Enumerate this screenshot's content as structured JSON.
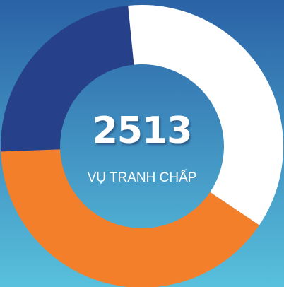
{
  "chart_data": {
    "type": "donut",
    "center_value": 2513,
    "center_caption": "VỤ TRANH CHẤP",
    "values": [
      36,
      40,
      24
    ],
    "colors": [
      "#ffffff",
      "#f47f2a",
      "#26418a"
    ]
  }
}
